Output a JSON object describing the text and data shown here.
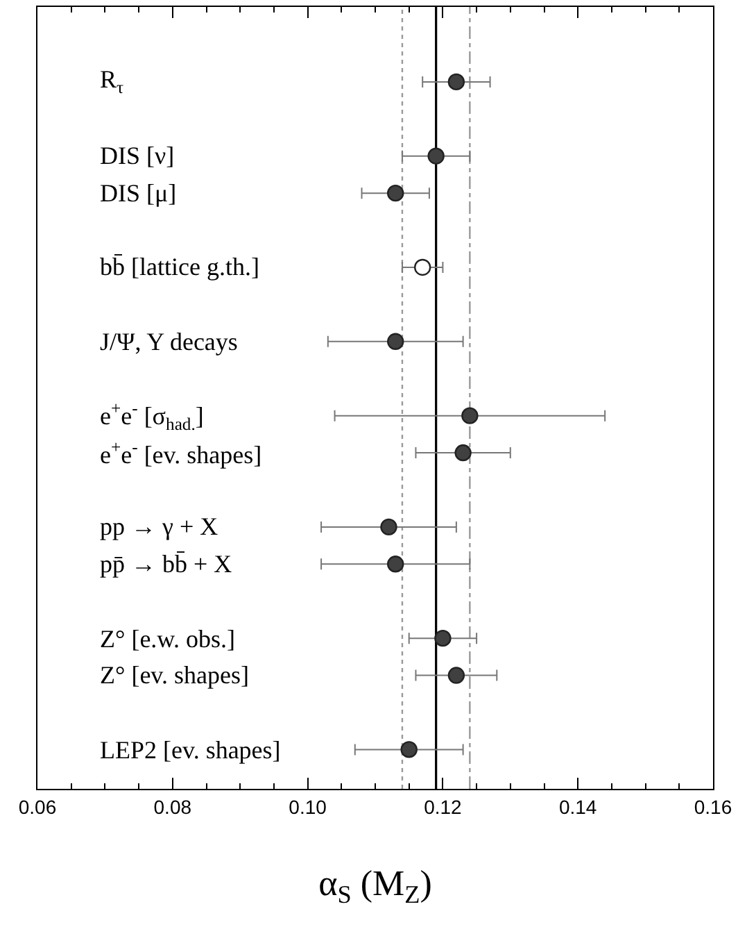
{
  "chart_data": {
    "type": "scatter",
    "orientation": "horizontal",
    "xlabel": "α$_{S}$ (M$_{Z}$)",
    "categories": [
      null,
      null,
      "R$_{τ}$",
      null,
      "DIS [ν]",
      "DIS [μ]",
      null,
      "bb̄ [lattice g.th.]",
      null,
      "J/Ψ, Υ decays",
      null,
      "e$^{+}$e$^{-}$ [σ$_{had.}$]",
      "e$^{+}$e$^{-}$ [ev. shapes]",
      null,
      "pp → γ + X",
      "pp̄ → bb̄ + X",
      null,
      "Z° [e.w. obs.]",
      "Z° [ev. shapes]",
      null,
      "LEP2 [ev. shapes]"
    ],
    "series": [
      {
        "color": "#404040",
        "values": [
          null,
          null,
          0.122,
          null,
          0.119,
          0.113,
          null,
          null,
          null,
          0.113,
          null,
          0.124,
          0.123,
          null,
          0.112,
          0.113,
          null,
          0.12,
          0.122,
          null,
          0.115
        ],
        "errors": [
          null,
          null,
          [
            0.117,
            0.127
          ],
          null,
          [
            0.114,
            0.124
          ],
          [
            0.108,
            0.118
          ],
          null,
          null,
          null,
          [
            0.103,
            0.123
          ],
          null,
          [
            0.104,
            0.144
          ],
          [
            0.116,
            0.13
          ],
          null,
          [
            0.102,
            0.122
          ],
          [
            0.102,
            0.124
          ],
          null,
          [
            0.115,
            0.125
          ],
          [
            0.116,
            0.128
          ],
          null,
          [
            0.107,
            0.123
          ]
        ]
      },
      {
        "color": "#ffffff",
        "values": [
          null,
          null,
          null,
          null,
          null,
          null,
          null,
          0.117,
          null,
          null,
          null,
          null,
          null,
          null,
          null,
          null,
          null,
          null,
          null,
          null,
          null
        ],
        "errors": [
          null,
          null,
          null,
          null,
          null,
          null,
          null,
          [
            0.114,
            0.12
          ],
          null,
          null,
          null,
          null,
          null,
          null,
          null,
          null,
          null,
          null,
          null,
          null,
          null
        ]
      }
    ],
    "xlim": [
      0.06,
      0.16
    ],
    "xticks": [
      {
        "value": 0.06,
        "label": "0.06"
      },
      {
        "value": 0.08,
        "label": "0.08"
      },
      {
        "value": 0.1,
        "label": "0.10"
      },
      {
        "value": 0.12,
        "label": "0.12"
      },
      {
        "value": 0.14,
        "label": "0.14"
      },
      {
        "value": 0.16,
        "label": "0.16"
      }
    ],
    "ref_lines": [
      {
        "axis": "x",
        "value": 0.119,
        "color": "#000000",
        "line_style": "solid"
      },
      {
        "axis": "x",
        "value": 0.114,
        "color": "#999999",
        "line_style": "dotted"
      },
      {
        "axis": "x",
        "value": 0.124,
        "color": "#999999",
        "line_style": "dashed"
      }
    ],
    "marker": "circle"
  }
}
